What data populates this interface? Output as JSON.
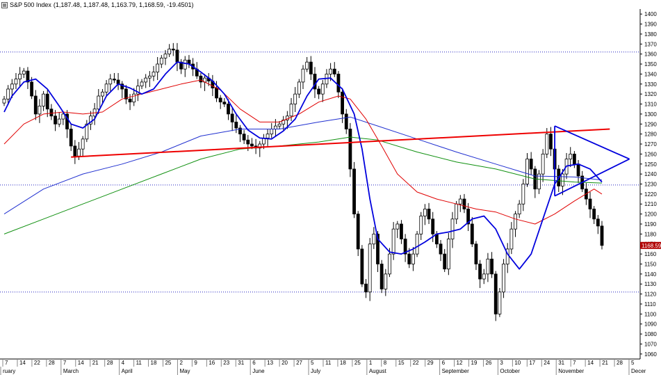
{
  "title": "S&P 500 Index",
  "ohlc_readout": "(1,187.48, 1,187.48, 1,163.79, 1,168.59, -19.4501)",
  "price_marker": "1168.59",
  "colors": {
    "candle": "#000000",
    "sma_fast": "#0000dd",
    "sma_mid": "#e00000",
    "sma_slow_blue": "#2030d0",
    "sma_slow_green": "#109010",
    "trendline_red": "#ee0000",
    "trendline_blue": "#0000dd",
    "dotted_level": "#2020c0",
    "price_tag_bg": "#b00000"
  },
  "chart_data": {
    "type": "ohlc",
    "title": "S&P 500 Index",
    "y_axis_ticks": [
      "1060",
      "1070",
      "1080",
      "1090",
      "1100",
      "1110",
      "1120",
      "1130",
      "1140",
      "1150",
      "1160",
      "1170",
      "1180",
      "1190",
      "1200",
      "1210",
      "1220",
      "1230",
      "1240",
      "1250",
      "1260",
      "1270",
      "1280",
      "1290",
      "1300",
      "1310",
      "1320",
      "1330",
      "1340",
      "1350",
      "1360",
      "1370",
      "1380",
      "1390",
      "1400"
    ],
    "ylim": [
      1055,
      1405
    ],
    "x_day_ticks": [
      "7",
      "14",
      "22",
      "28",
      "7",
      "14",
      "21",
      "28",
      "4",
      "11",
      "18",
      "25",
      "2",
      "9",
      "16",
      "23",
      "31",
      "6",
      "13",
      "20",
      "27",
      "5",
      "11",
      "18",
      "25",
      "1",
      "8",
      "15",
      "22",
      "29",
      "6",
      "12",
      "19",
      "26",
      "3",
      "10",
      "17",
      "24",
      "31",
      "7",
      "14",
      "21",
      "28",
      "5"
    ],
    "x_month_labels": [
      "ruary",
      "March",
      "April",
      "May",
      "June",
      "July",
      "August",
      "September",
      "October",
      "November",
      "Decer"
    ],
    "horizontal_levels": [
      1362,
      1229,
      1122
    ],
    "bar_closes": [
      1315,
      1325,
      1330,
      1335,
      1340,
      1343,
      1332,
      1318,
      1300,
      1308,
      1320,
      1305,
      1298,
      1290,
      1295,
      1300,
      1285,
      1268,
      1258,
      1265,
      1275,
      1290,
      1298,
      1305,
      1318,
      1322,
      1330,
      1335,
      1334,
      1330,
      1325,
      1315,
      1312,
      1320,
      1328,
      1332,
      1336,
      1338,
      1342,
      1350,
      1356,
      1360,
      1365,
      1364,
      1352,
      1345,
      1354,
      1350,
      1345,
      1338,
      1332,
      1336,
      1333,
      1326,
      1316,
      1312,
      1310,
      1300,
      1292,
      1286,
      1280,
      1274,
      1270,
      1268,
      1266,
      1270,
      1276,
      1280,
      1285,
      1288,
      1290,
      1294,
      1298,
      1310,
      1320,
      1332,
      1345,
      1352,
      1340,
      1325,
      1320,
      1330,
      1340,
      1345,
      1340,
      1322,
      1300,
      1285,
      1245,
      1200,
      1165,
      1130,
      1122,
      1170,
      1180,
      1150,
      1125,
      1140,
      1160,
      1185,
      1190,
      1175,
      1160,
      1150,
      1160,
      1180,
      1198,
      1205,
      1195,
      1180,
      1170,
      1160,
      1145,
      1175,
      1195,
      1210,
      1215,
      1205,
      1190,
      1170,
      1150,
      1135,
      1140,
      1155,
      1140,
      1100,
      1122,
      1150,
      1165,
      1185,
      1200,
      1210,
      1230,
      1255,
      1245,
      1225,
      1240,
      1260,
      1280,
      1265,
      1245,
      1228,
      1240,
      1255,
      1260,
      1250,
      1238,
      1225,
      1215,
      1205,
      1195,
      1188,
      1168.59
    ],
    "sma_fast": [
      {
        "x": 0,
        "y": 1302
      },
      {
        "x": 2,
        "y": 1318
      },
      {
        "x": 5,
        "y": 1332
      },
      {
        "x": 8,
        "y": 1335
      },
      {
        "x": 11,
        "y": 1325
      },
      {
        "x": 14,
        "y": 1308
      },
      {
        "x": 17,
        "y": 1290
      },
      {
        "x": 20,
        "y": 1286
      },
      {
        "x": 23,
        "y": 1295
      },
      {
        "x": 26,
        "y": 1318
      },
      {
        "x": 29,
        "y": 1330
      },
      {
        "x": 32,
        "y": 1326
      },
      {
        "x": 35,
        "y": 1320
      },
      {
        "x": 38,
        "y": 1325
      },
      {
        "x": 41,
        "y": 1340
      },
      {
        "x": 44,
        "y": 1352
      },
      {
        "x": 47,
        "y": 1350
      },
      {
        "x": 50,
        "y": 1342
      },
      {
        "x": 53,
        "y": 1333
      },
      {
        "x": 56,
        "y": 1320
      },
      {
        "x": 59,
        "y": 1300
      },
      {
        "x": 62,
        "y": 1284
      },
      {
        "x": 65,
        "y": 1276
      },
      {
        "x": 68,
        "y": 1275
      },
      {
        "x": 71,
        "y": 1283
      },
      {
        "x": 74,
        "y": 1295
      },
      {
        "x": 77,
        "y": 1318
      },
      {
        "x": 80,
        "y": 1335
      },
      {
        "x": 83,
        "y": 1336
      },
      {
        "x": 86,
        "y": 1325
      },
      {
        "x": 89,
        "y": 1300
      },
      {
        "x": 91,
        "y": 1265
      },
      {
        "x": 93,
        "y": 1215
      },
      {
        "x": 95,
        "y": 1175
      },
      {
        "x": 98,
        "y": 1162
      },
      {
        "x": 101,
        "y": 1160
      },
      {
        "x": 104,
        "y": 1165
      },
      {
        "x": 107,
        "y": 1172
      },
      {
        "x": 110,
        "y": 1180
      },
      {
        "x": 113,
        "y": 1182
      },
      {
        "x": 116,
        "y": 1185
      },
      {
        "x": 119,
        "y": 1195
      },
      {
        "x": 122,
        "y": 1198
      },
      {
        "x": 125,
        "y": 1185
      },
      {
        "x": 128,
        "y": 1160
      },
      {
        "x": 131,
        "y": 1145
      },
      {
        "x": 134,
        "y": 1160
      },
      {
        "x": 137,
        "y": 1195
      },
      {
        "x": 140,
        "y": 1230
      },
      {
        "x": 143,
        "y": 1248
      },
      {
        "x": 146,
        "y": 1250
      },
      {
        "x": 149,
        "y": 1245
      },
      {
        "x": 152,
        "y": 1232
      }
    ],
    "sma_mid": [
      {
        "x": 0,
        "y": 1270
      },
      {
        "x": 5,
        "y": 1290
      },
      {
        "x": 10,
        "y": 1300
      },
      {
        "x": 15,
        "y": 1302
      },
      {
        "x": 20,
        "y": 1300
      },
      {
        "x": 25,
        "y": 1302
      },
      {
        "x": 30,
        "y": 1315
      },
      {
        "x": 35,
        "y": 1320
      },
      {
        "x": 40,
        "y": 1325
      },
      {
        "x": 45,
        "y": 1330
      },
      {
        "x": 50,
        "y": 1334
      },
      {
        "x": 55,
        "y": 1324
      },
      {
        "x": 60,
        "y": 1305
      },
      {
        "x": 65,
        "y": 1292
      },
      {
        "x": 70,
        "y": 1292
      },
      {
        "x": 75,
        "y": 1300
      },
      {
        "x": 80,
        "y": 1312
      },
      {
        "x": 85,
        "y": 1318
      },
      {
        "x": 88,
        "y": 1315
      },
      {
        "x": 92,
        "y": 1295
      },
      {
        "x": 96,
        "y": 1268
      },
      {
        "x": 100,
        "y": 1240
      },
      {
        "x": 105,
        "y": 1222
      },
      {
        "x": 110,
        "y": 1215
      },
      {
        "x": 115,
        "y": 1210
      },
      {
        "x": 120,
        "y": 1205
      },
      {
        "x": 125,
        "y": 1202
      },
      {
        "x": 130,
        "y": 1195
      },
      {
        "x": 135,
        "y": 1190
      },
      {
        "x": 140,
        "y": 1200
      },
      {
        "x": 145,
        "y": 1213
      },
      {
        "x": 150,
        "y": 1225
      },
      {
        "x": 152,
        "y": 1220
      }
    ],
    "sma_slow_blue": [
      {
        "x": 0,
        "y": 1200
      },
      {
        "x": 10,
        "y": 1225
      },
      {
        "x": 20,
        "y": 1240
      },
      {
        "x": 30,
        "y": 1250
      },
      {
        "x": 40,
        "y": 1262
      },
      {
        "x": 50,
        "y": 1278
      },
      {
        "x": 60,
        "y": 1285
      },
      {
        "x": 70,
        "y": 1285
      },
      {
        "x": 80,
        "y": 1292
      },
      {
        "x": 88,
        "y": 1297
      },
      {
        "x": 95,
        "y": 1288
      },
      {
        "x": 105,
        "y": 1275
      },
      {
        "x": 115,
        "y": 1262
      },
      {
        "x": 125,
        "y": 1250
      },
      {
        "x": 135,
        "y": 1238
      },
      {
        "x": 145,
        "y": 1237
      },
      {
        "x": 152,
        "y": 1234
      }
    ],
    "sma_slow_green": [
      {
        "x": 0,
        "y": 1180
      },
      {
        "x": 10,
        "y": 1195
      },
      {
        "x": 20,
        "y": 1210
      },
      {
        "x": 30,
        "y": 1225
      },
      {
        "x": 40,
        "y": 1240
      },
      {
        "x": 50,
        "y": 1255
      },
      {
        "x": 60,
        "y": 1265
      },
      {
        "x": 70,
        "y": 1268
      },
      {
        "x": 80,
        "y": 1272
      },
      {
        "x": 88,
        "y": 1277
      },
      {
        "x": 95,
        "y": 1274
      },
      {
        "x": 105,
        "y": 1262
      },
      {
        "x": 115,
        "y": 1252
      },
      {
        "x": 125,
        "y": 1245
      },
      {
        "x": 135,
        "y": 1235
      },
      {
        "x": 145,
        "y": 1232
      },
      {
        "x": 152,
        "y": 1231
      }
    ],
    "trendline_red": [
      {
        "x": 17,
        "y": 1257
      },
      {
        "x": 154,
        "y": 1285
      }
    ],
    "triangle_upper": [
      {
        "x": 140,
        "y": 1288
      },
      {
        "x": 159,
        "y": 1255
      }
    ],
    "triangle_lower": [
      {
        "x": 140,
        "y": 1218
      },
      {
        "x": 159,
        "y": 1255
      }
    ],
    "triangle_left": [
      {
        "x": 140,
        "y": 1218
      },
      {
        "x": 140,
        "y": 1288
      }
    ]
  }
}
